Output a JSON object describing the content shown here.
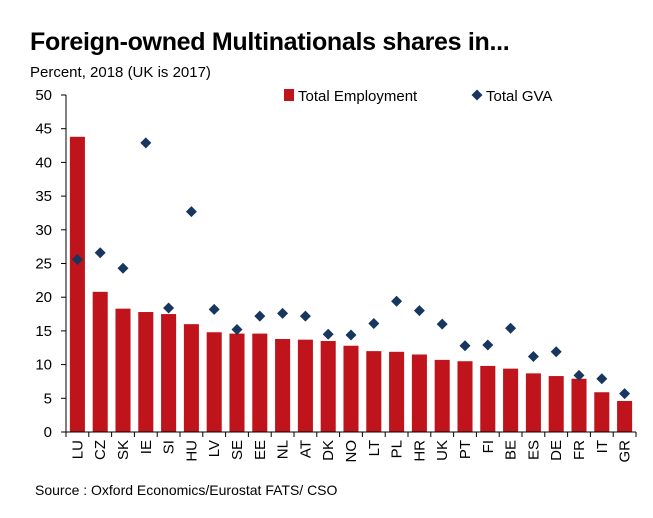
{
  "chart_data": {
    "type": "bar",
    "title": "Foreign-owned Multinationals shares in...",
    "subtitle": "Percent, 2018 (UK is 2017)",
    "source": "Source : Oxford Economics/Eurostat FATS/ CSO",
    "xlabel": "",
    "ylabel": "",
    "ylim": [
      0,
      50
    ],
    "yticks": [
      0,
      5,
      10,
      15,
      20,
      25,
      30,
      35,
      40,
      45,
      50
    ],
    "legend_position": "top-right",
    "categories": [
      "LU",
      "CZ",
      "SK",
      "IE",
      "SI",
      "HU",
      "LV",
      "SE",
      "EE",
      "NL",
      "AT",
      "DK",
      "NO",
      "LT",
      "PL",
      "HR",
      "UK",
      "PT",
      "FI",
      "BE",
      "ES",
      "DE",
      "FR",
      "IT",
      "GR"
    ],
    "series": [
      {
        "name": "Total Employment",
        "type": "bar",
        "color": "#C0141C",
        "values": [
          43.8,
          20.8,
          18.3,
          17.8,
          17.5,
          16.0,
          14.8,
          14.6,
          14.6,
          13.8,
          13.7,
          13.5,
          12.8,
          12.0,
          11.9,
          11.5,
          10.7,
          10.5,
          9.8,
          9.4,
          8.7,
          8.3,
          7.9,
          5.9,
          4.6
        ]
      },
      {
        "name": "Total GVA",
        "type": "scatter",
        "marker": "diamond",
        "color": "#17375E",
        "values": [
          25.6,
          26.6,
          24.3,
          42.9,
          18.4,
          32.7,
          18.2,
          15.2,
          17.2,
          17.6,
          17.2,
          14.5,
          14.4,
          16.1,
          19.4,
          18.0,
          16.0,
          12.8,
          12.9,
          15.4,
          11.2,
          11.9,
          8.4,
          7.9,
          5.7
        ]
      }
    ]
  }
}
